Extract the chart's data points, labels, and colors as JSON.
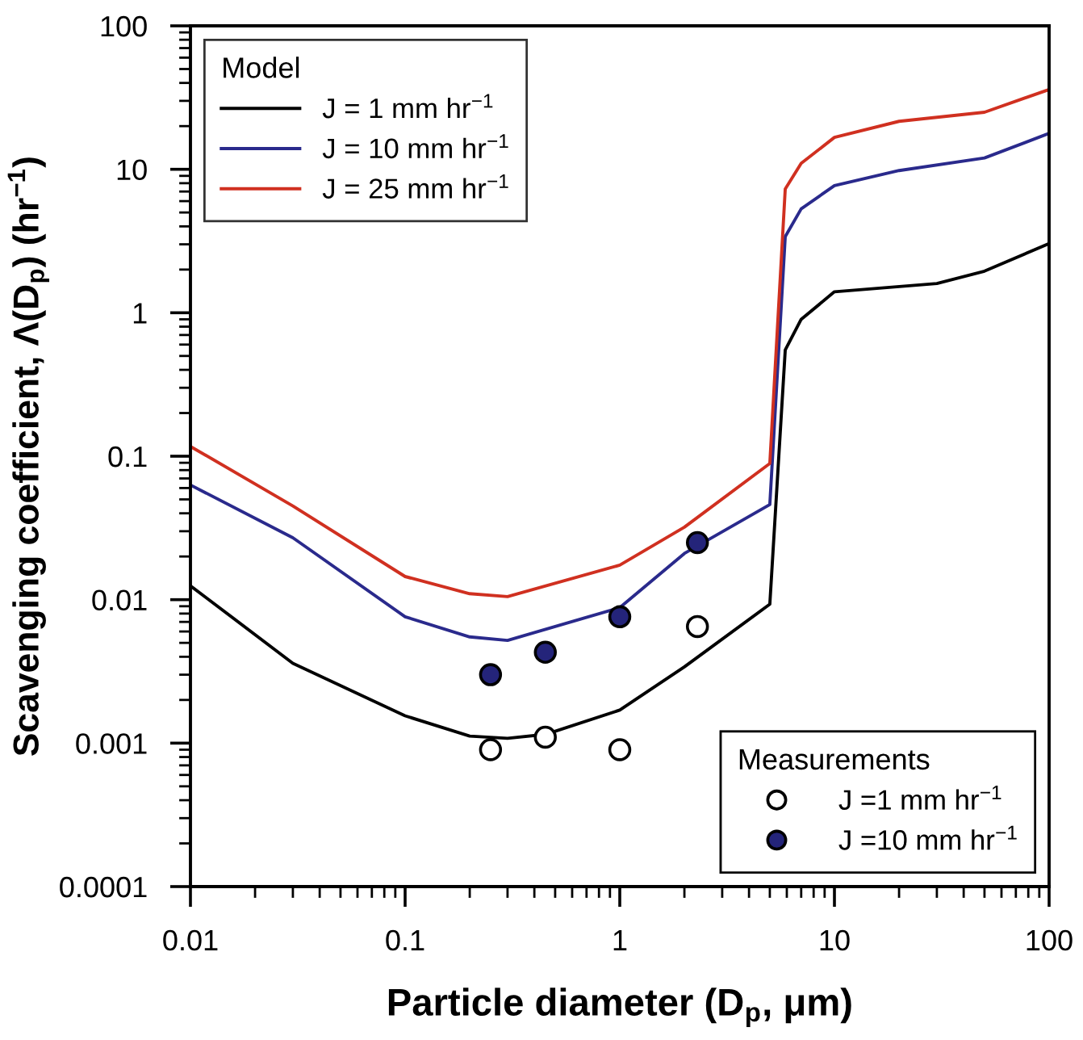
{
  "chart_data": {
    "type": "line",
    "xlabel": "Particle diameter (D$_{p}$, μm)",
    "ylabel": "Scavenging coefficient, Λ(D$_{p}$) (hr$^{−1}$)",
    "log": "xy",
    "xlim": [
      0.01,
      100
    ],
    "xticks": [
      0.01,
      0.1,
      1,
      10,
      100
    ],
    "ylim": [
      0.0001,
      100
    ],
    "yticks": [
      0.0001,
      0.001,
      0.01,
      0.1,
      1,
      10,
      100
    ],
    "grid": false,
    "legend": [
      "top left",
      "bottom right"
    ],
    "legend_title": [
      "Model",
      "Measurements"
    ],
    "marker": "none",
    "line_style": "solid",
    "series": [
      {
        "name": "J = 1 mm hr$^{−1}$",
        "color": "#000000",
        "x": [
          0.01,
          0.03,
          0.1,
          0.2,
          0.3,
          0.45,
          1,
          2,
          5,
          5.9,
          7,
          10,
          30,
          50,
          100
        ],
        "values": [
          0.0125,
          0.0036,
          0.00155,
          0.00112,
          0.00108,
          0.00115,
          0.0017,
          0.0034,
          0.0093,
          0.55,
          0.9,
          1.4,
          1.6,
          1.95,
          3.04
        ]
      },
      {
        "name": "J = 10 mm hr$^{−1}$",
        "color": "#2a2a8c",
        "x": [
          0.01,
          0.03,
          0.1,
          0.2,
          0.3,
          1,
          2,
          5,
          5.9,
          7,
          10,
          20,
          50,
          100
        ],
        "values": [
          0.063,
          0.027,
          0.0076,
          0.0055,
          0.0052,
          0.0088,
          0.021,
          0.046,
          3.4,
          5.3,
          7.7,
          9.8,
          12,
          17.8
        ]
      },
      {
        "name": "J = 25 mm hr$^{−1}$",
        "color": "#d03020",
        "x": [
          0.01,
          0.03,
          0.1,
          0.2,
          0.3,
          1,
          2,
          5,
          5.9,
          7,
          10,
          20,
          50,
          100
        ],
        "values": [
          0.117,
          0.045,
          0.0145,
          0.011,
          0.0105,
          0.0174,
          0.032,
          0.089,
          7.3,
          11,
          16.7,
          21.6,
          25,
          36
        ]
      },
      {
        "name": "J =1 mm hr$^{−1}$",
        "type": "scatter",
        "marker": "circle",
        "color": "#ffffff",
        "x": [
          0.25,
          0.45,
          1,
          2.3
        ],
        "values": [
          0.0009,
          0.0011,
          0.0009,
          0.0065
        ]
      },
      {
        "name": "J =10 mm hr$^{−1}$",
        "type": "scatter",
        "marker": "circle",
        "color": "#24247a",
        "x": [
          0.25,
          0.45,
          1,
          2.3
        ],
        "values": [
          0.003,
          0.0043,
          0.0076,
          0.025
        ]
      }
    ]
  }
}
